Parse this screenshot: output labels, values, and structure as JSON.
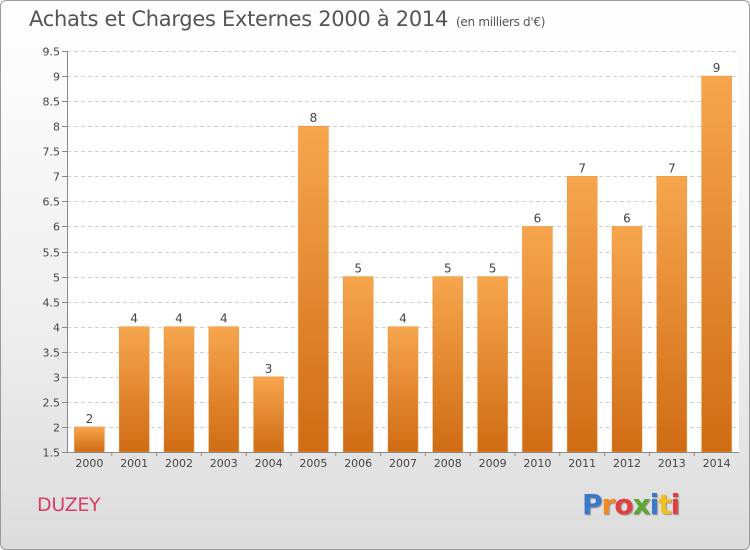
{
  "header": {
    "title": "Achats et Charges Externes 2000 à 2014",
    "subtitle": "(en milliers d'€)"
  },
  "footer": {
    "location": "DUZEY",
    "brand": "Proxiti",
    "brand_letters": [
      "P",
      "r",
      "o",
      "x",
      "i",
      "t",
      "i"
    ],
    "brand_colors": [
      "#3a78c8",
      "#f08a20",
      "#e04040",
      "#5aa832",
      "#3a78c8",
      "#f0c020",
      "#e04040"
    ]
  },
  "chart_data": {
    "type": "bar",
    "categories": [
      "2000",
      "2001",
      "2002",
      "2003",
      "2004",
      "2005",
      "2006",
      "2007",
      "2008",
      "2009",
      "2010",
      "2011",
      "2012",
      "2013",
      "2014"
    ],
    "values": [
      2,
      4,
      4,
      4,
      3,
      8,
      5,
      4,
      5,
      5,
      6,
      7,
      6,
      7,
      9
    ],
    "data_labels": [
      "2",
      "4",
      "4",
      "4",
      "3",
      "8",
      "5",
      "4",
      "5",
      "5",
      "6",
      "7",
      "6",
      "7",
      "9"
    ],
    "yticks": [
      "1.5",
      "2",
      "2.5",
      "3",
      "3.5",
      "4",
      "4.5",
      "5",
      "5.5",
      "6",
      "6.5",
      "7",
      "7.5",
      "8",
      "8.5",
      "9",
      "9.5"
    ],
    "ylim": [
      1.5,
      9.5
    ],
    "grid": "horizontal dashed",
    "bar_color_top": "#f7a64e",
    "bar_color_bottom": "#cf6c14"
  }
}
